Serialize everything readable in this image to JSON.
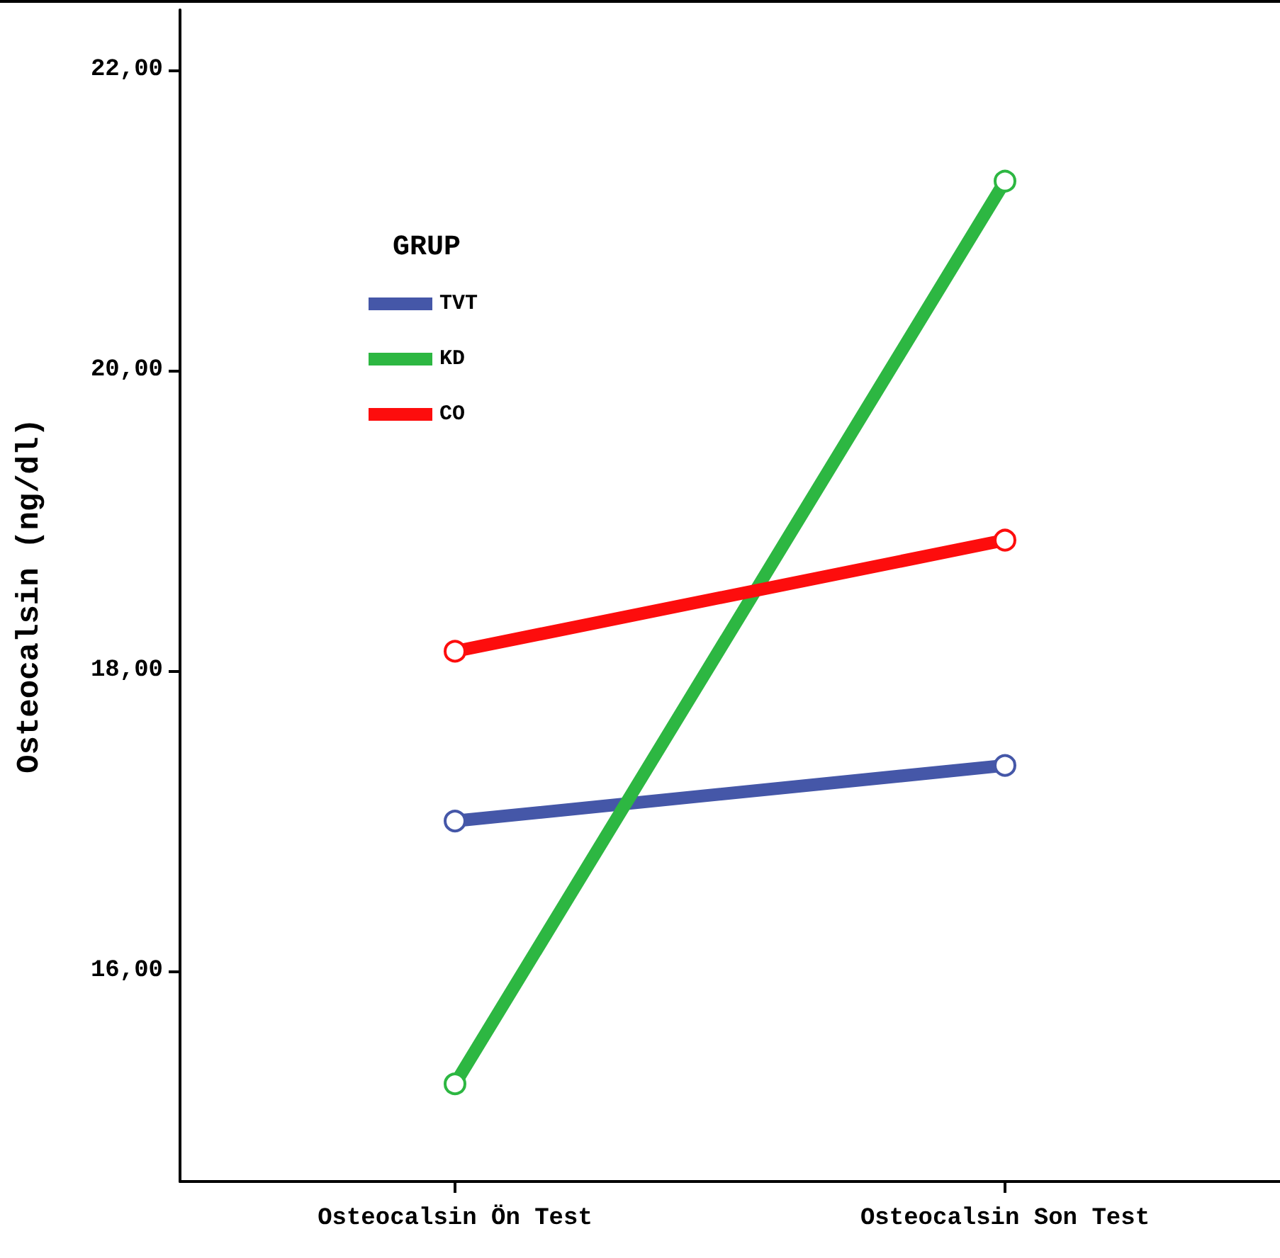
{
  "chart_data": {
    "type": "line",
    "ylabel": "Osteocalsin (ng/dl)",
    "legend_title": "GRUP",
    "legend": "top left",
    "marker": "circle",
    "grid": false,
    "categories": [
      "Osteocalsin Ön Test",
      "Osteocalsin Son Test"
    ],
    "series": [
      {
        "name": "TVT",
        "color": "#4557a8",
        "values": [
          17.0,
          17.37
        ]
      },
      {
        "name": "KD",
        "color": "#2db742",
        "values": [
          15.25,
          21.26
        ]
      },
      {
        "name": "CO",
        "color": "#fd0d0d",
        "values": [
          18.13,
          18.87
        ]
      }
    ],
    "ylim": [
      14.6,
      22.4
    ],
    "yticks": [
      {
        "value": 16,
        "label": "16,00"
      },
      {
        "value": 18,
        "label": "18,00"
      },
      {
        "value": 20,
        "label": "20,00"
      },
      {
        "value": 22,
        "label": "22,00"
      }
    ]
  }
}
